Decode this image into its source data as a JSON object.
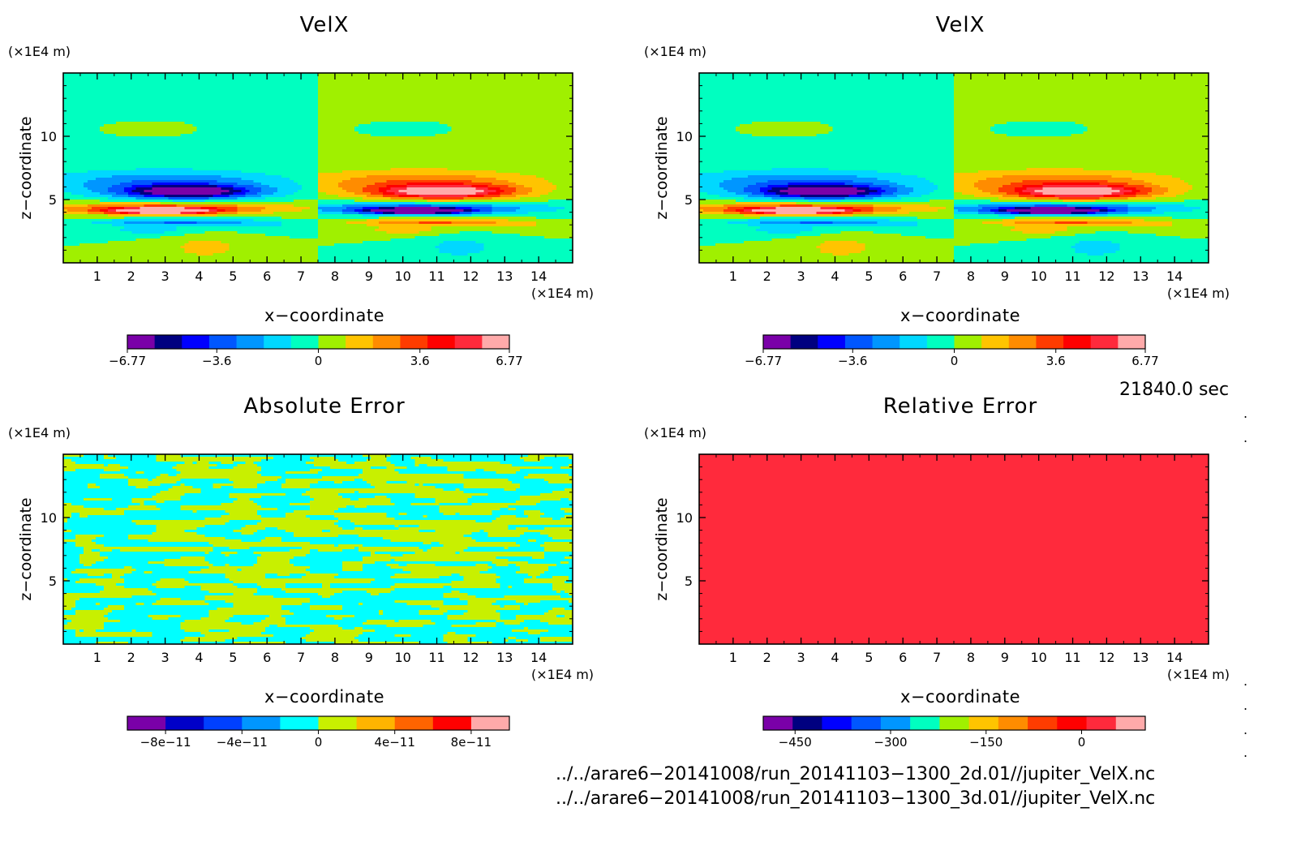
{
  "chart_data": [
    {
      "type": "heatmap",
      "title": "VelX",
      "xlabel": "x−coordinate",
      "ylabel": "z−coordinate",
      "x_unit": "(×1E4 m)",
      "y_unit": "(×1E4 m)",
      "xlim": [
        0,
        15
      ],
      "ylim": [
        0,
        15
      ],
      "x_ticks": [
        1,
        2,
        3,
        4,
        5,
        6,
        7,
        8,
        9,
        10,
        11,
        12,
        13,
        14
      ],
      "y_ticks": [
        5,
        10
      ],
      "field": "velx",
      "colorbar": {
        "colors": [
          "#7a00a8",
          "#000080",
          "#0000ff",
          "#0057ff",
          "#0096ff",
          "#00d8ff",
          "#00ffc0",
          "#a0f000",
          "#ffc400",
          "#ff8c00",
          "#ff3c00",
          "#ff0000",
          "#ff2a3c",
          "#ffaaaa"
        ],
        "tick_labels": [
          "−6.77",
          "−3.6",
          "0",
          "3.6",
          "6.77"
        ],
        "tick_values": [
          -6.77,
          -3.6,
          0,
          3.6,
          6.77
        ],
        "range": [
          -6.77,
          6.77
        ]
      }
    },
    {
      "type": "heatmap",
      "title": "VelX",
      "xlabel": "x−coordinate",
      "ylabel": "z−coordinate",
      "x_unit": "(×1E4 m)",
      "y_unit": "(×1E4 m)",
      "xlim": [
        0,
        15
      ],
      "ylim": [
        0,
        15
      ],
      "x_ticks": [
        1,
        2,
        3,
        4,
        5,
        6,
        7,
        8,
        9,
        10,
        11,
        12,
        13,
        14
      ],
      "y_ticks": [
        5,
        10
      ],
      "field": "velx",
      "colorbar": {
        "colors": [
          "#7a00a8",
          "#000080",
          "#0000ff",
          "#0057ff",
          "#0096ff",
          "#00d8ff",
          "#00ffc0",
          "#a0f000",
          "#ffc400",
          "#ff8c00",
          "#ff3c00",
          "#ff0000",
          "#ff2a3c",
          "#ffaaaa"
        ],
        "tick_labels": [
          "−6.77",
          "−3.6",
          "0",
          "3.6",
          "6.77"
        ],
        "tick_values": [
          -6.77,
          -3.6,
          0,
          3.6,
          6.77
        ],
        "range": [
          -6.77,
          6.77
        ]
      }
    },
    {
      "type": "heatmap",
      "title": "Absolute Error",
      "xlabel": "x−coordinate",
      "ylabel": "z−coordinate",
      "x_unit": "(×1E4 m)",
      "y_unit": "(×1E4 m)",
      "xlim": [
        0,
        15
      ],
      "ylim": [
        0,
        15
      ],
      "x_ticks": [
        1,
        2,
        3,
        4,
        5,
        6,
        7,
        8,
        9,
        10,
        11,
        12,
        13,
        14
      ],
      "y_ticks": [
        5,
        10
      ],
      "field": "abserr",
      "colorbar": {
        "colors": [
          "#7a00a8",
          "#0000c8",
          "#0040ff",
          "#0096ff",
          "#00ffff",
          "#c8f000",
          "#ffb400",
          "#ff6400",
          "#ff0000",
          "#ffaaaa"
        ],
        "tick_labels": [
          "−8e−11",
          "−4e−11",
          "0",
          "4e−11",
          "8e−11"
        ],
        "tick_values": [
          -8e-11,
          -4e-11,
          0,
          4e-11,
          8e-11
        ],
        "range": [
          -1e-10,
          1e-10
        ]
      }
    },
    {
      "type": "heatmap",
      "title": "Relative Error",
      "xlabel": "x−coordinate",
      "ylabel": "z−coordinate",
      "x_unit": "(×1E4 m)",
      "y_unit": "(×1E4 m)",
      "xlim": [
        0,
        15
      ],
      "ylim": [
        0,
        15
      ],
      "x_ticks": [
        1,
        2,
        3,
        4,
        5,
        6,
        7,
        8,
        9,
        10,
        11,
        12,
        13,
        14
      ],
      "y_ticks": [
        5,
        10
      ],
      "field": "relerr",
      "colorbar": {
        "colors": [
          "#7a00a8",
          "#000080",
          "#0000ff",
          "#0057ff",
          "#0096ff",
          "#00ffc0",
          "#a0f000",
          "#ffc400",
          "#ff8c00",
          "#ff3c00",
          "#ff0000",
          "#ff2a3c",
          "#ffaaaa"
        ],
        "tick_labels": [
          "−450",
          "−300",
          "−150",
          "0"
        ],
        "tick_values": [
          -450,
          -300,
          -150,
          0
        ],
        "range": [
          -500,
          100
        ]
      }
    }
  ],
  "footer": {
    "time": "21840.0 sec",
    "file1": "../../arare6−20141008/run_20141103−1300_2d.01//jupiter_VelX.nc",
    "file2": "../../arare6−20141008/run_20141103−1300_3d.01//jupiter_VelX.nc",
    "dot": "."
  }
}
